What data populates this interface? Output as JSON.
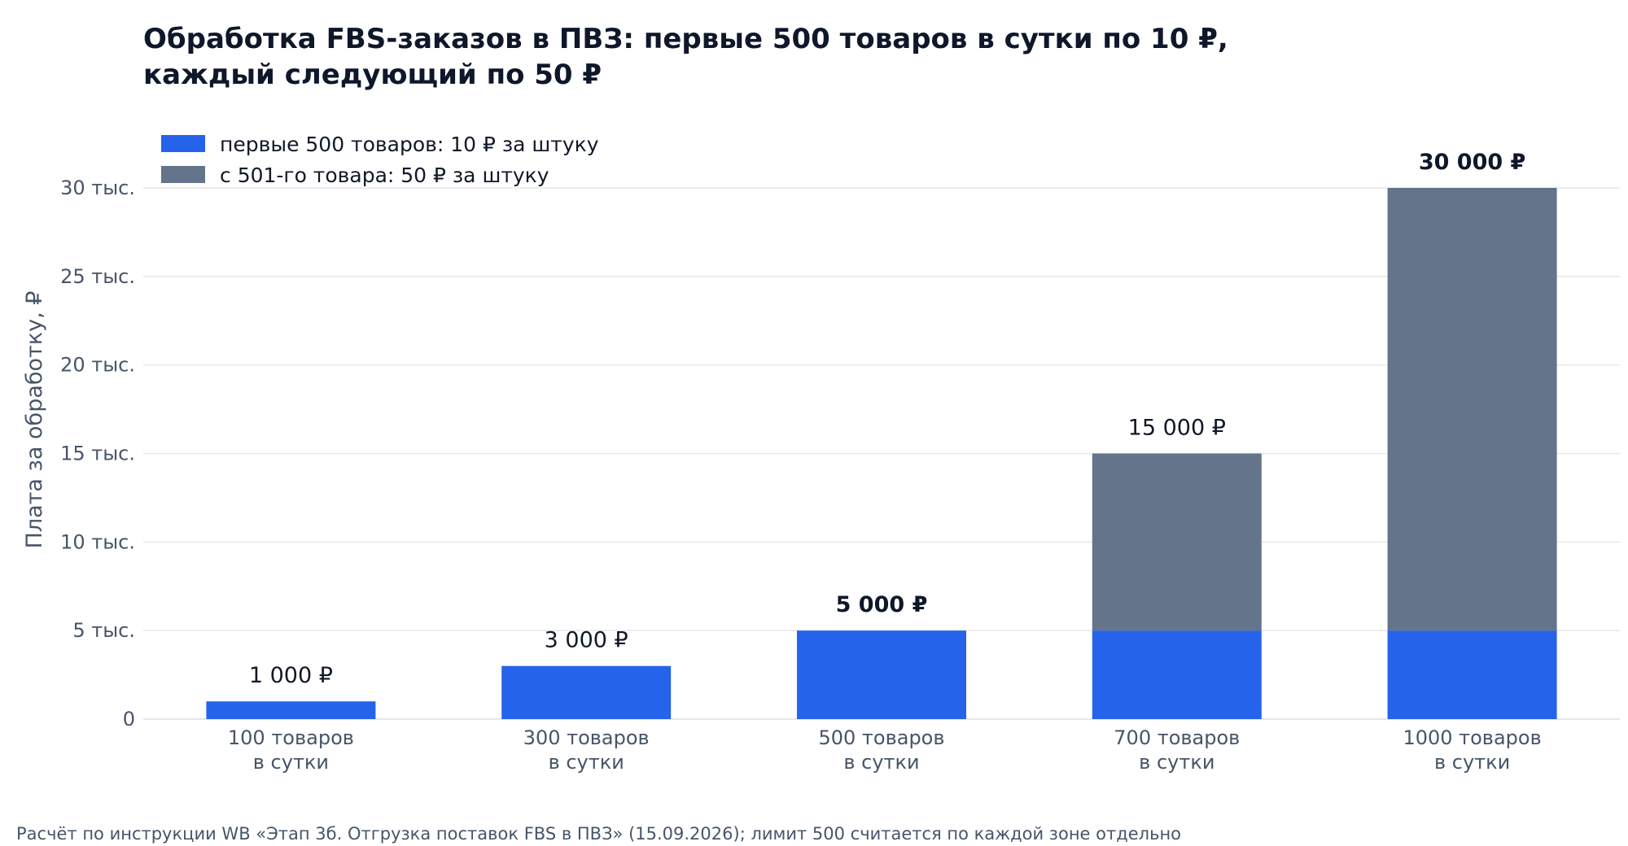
{
  "title_lines": [
    "Обработка FBS-заказов в ПВЗ: первые 500 товаров в сутки по 10 ₽,",
    "каждый следующий по 50 ₽"
  ],
  "footnote": "Расчёт по инструкции WB «Этап 3б. Отгрузка поставок FBS в ПВЗ» (15.09.2026); лимит 500 считается по каждой зоне отдельно",
  "colors": {
    "first_tier": "#2563eb",
    "second_tier": "#64748b"
  },
  "chart_data": {
    "type": "bar",
    "stacked": true,
    "title": "Обработка FBS-заказов в ПВЗ: первые 500 товаров в сутки по 10 ₽, каждый следующий по 50 ₽",
    "ylabel": "Плата за обработку, ₽",
    "xlabel": "",
    "ylim": [
      0,
      30000
    ],
    "yticks": [
      {
        "value": 0,
        "label": "0"
      },
      {
        "value": 5000,
        "label": "5 тыс."
      },
      {
        "value": 10000,
        "label": "10 тыс."
      },
      {
        "value": 15000,
        "label": "15 тыс."
      },
      {
        "value": 20000,
        "label": "20 тыс."
      },
      {
        "value": 25000,
        "label": "25 тыс."
      },
      {
        "value": 30000,
        "label": "30 тыс."
      }
    ],
    "grid": true,
    "legend_position": "top-left",
    "categories": [
      [
        "100 товаров",
        "в сутки"
      ],
      [
        "300 товаров",
        "в сутки"
      ],
      [
        "500 товаров",
        "в сутки"
      ],
      [
        "700 товаров",
        "в сутки"
      ],
      [
        "1000 товаров",
        "в сутки"
      ]
    ],
    "series": [
      {
        "name": "первые 500 товаров: 10 ₽ за штуку",
        "color": "#2563eb",
        "values": [
          1000,
          3000,
          5000,
          5000,
          5000
        ]
      },
      {
        "name": "с 501-го товара: 50 ₽ за штуку",
        "color": "#64748b",
        "values": [
          0,
          0,
          0,
          10000,
          25000
        ]
      }
    ],
    "totals": [
      1000,
      3000,
      5000,
      15000,
      30000
    ],
    "total_labels": [
      "1 000 ₽",
      "3 000 ₽",
      "5 000 ₽",
      "15 000 ₽",
      "30 000 ₽"
    ],
    "total_label_bold": [
      false,
      false,
      true,
      false,
      true
    ]
  }
}
